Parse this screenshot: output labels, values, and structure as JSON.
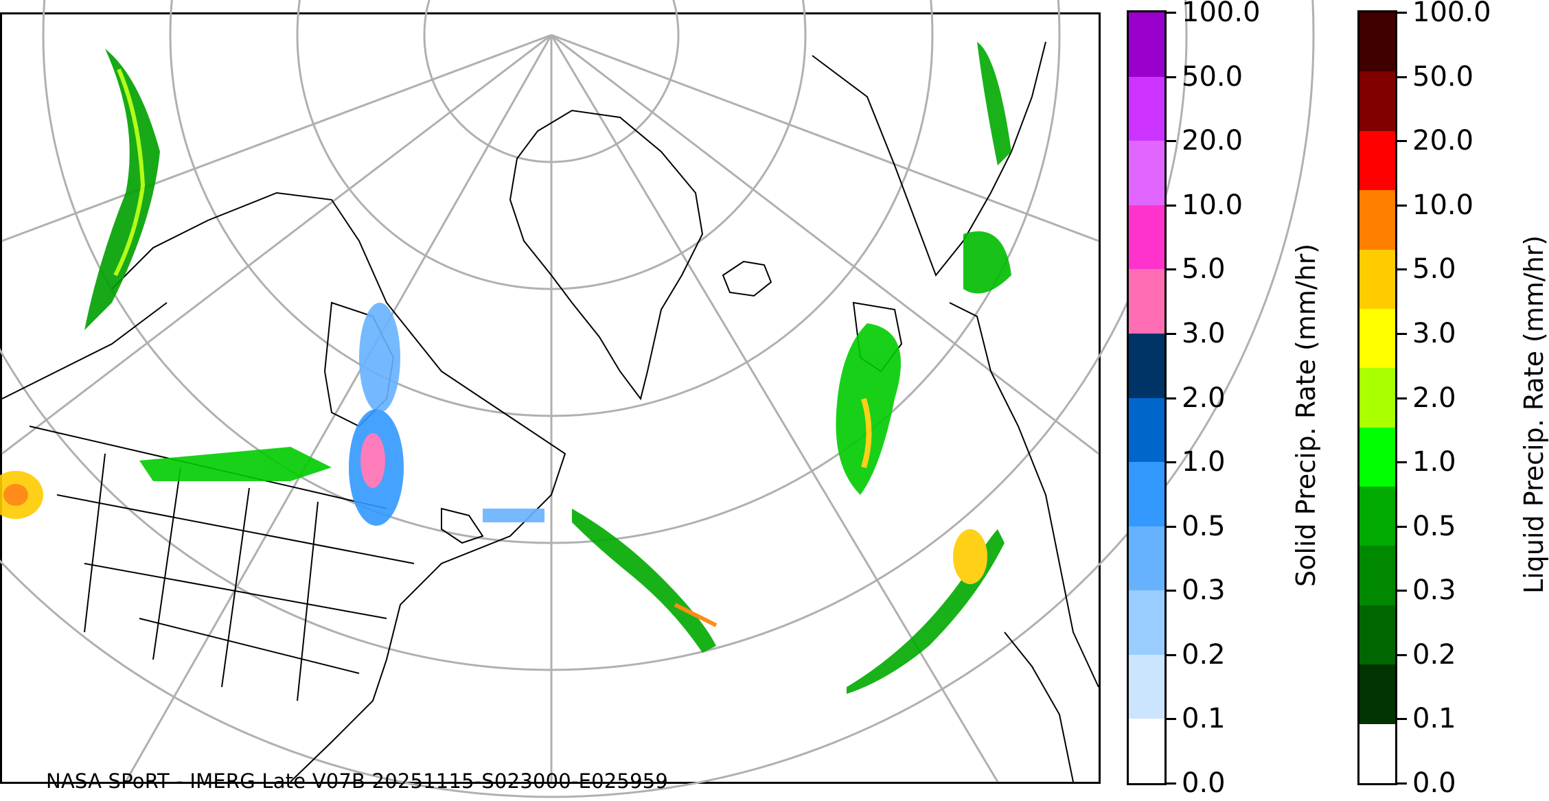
{
  "credit": "NASA SPoRT - IMERG Late V07B 20251115-S023000-E025959",
  "colorbars": [
    {
      "id": "solid",
      "label": "Solid Precip. Rate (mm/hr)",
      "ticks": [
        "0.0",
        "0.1",
        "0.2",
        "0.3",
        "0.5",
        "1.0",
        "2.0",
        "3.0",
        "5.0",
        "10.0",
        "20.0",
        "50.0",
        "100.0"
      ],
      "colors": [
        "#ffffff",
        "#cce5ff",
        "#99ccff",
        "#66b2ff",
        "#3399ff",
        "#0066cc",
        "#003366",
        "#ff6eb4",
        "#ff33cc",
        "#e066ff",
        "#cc33ff",
        "#9900cc"
      ]
    },
    {
      "id": "liquid",
      "label": "Liquid Precip. Rate (mm/hr)",
      "ticks": [
        "0.0",
        "0.1",
        "0.2",
        "0.3",
        "0.5",
        "1.0",
        "2.0",
        "3.0",
        "5.0",
        "10.0",
        "20.0",
        "50.0",
        "100.0"
      ],
      "colors": [
        "#ffffff",
        "#003300",
        "#006600",
        "#008800",
        "#00aa00",
        "#00ff00",
        "#aaff00",
        "#ffff00",
        "#ffcc00",
        "#ff8000",
        "#ff0000",
        "#800000",
        "#400000"
      ]
    }
  ]
}
